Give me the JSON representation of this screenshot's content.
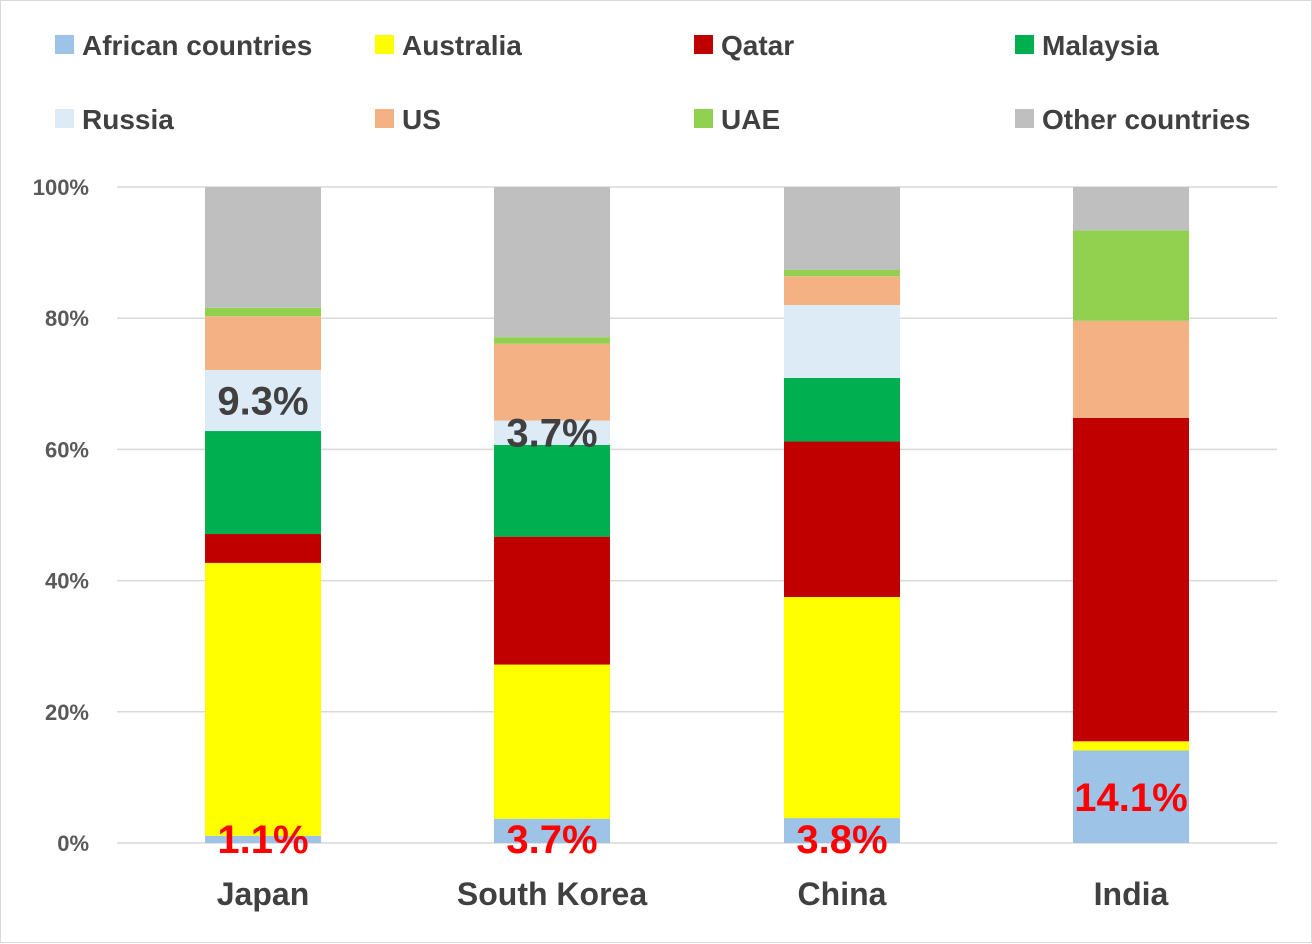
{
  "chart_data": {
    "type": "bar",
    "stacked": true,
    "categories": [
      "Japan",
      "South Korea",
      "China",
      "India"
    ],
    "series": [
      {
        "name": "African countries",
        "color": "#9DC3E6",
        "values": [
          1.1,
          3.7,
          3.8,
          14.1
        ]
      },
      {
        "name": "Australia",
        "color": "#FFFF00",
        "values": [
          41.6,
          23.5,
          33.7,
          1.4
        ]
      },
      {
        "name": "Qatar",
        "color": "#C00000",
        "values": [
          4.4,
          19.5,
          23.7,
          49.3
        ]
      },
      {
        "name": "Malaysia",
        "color": "#00B050",
        "values": [
          15.7,
          14.0,
          9.7,
          0.0
        ]
      },
      {
        "name": "Russia",
        "color": "#DDEBF7",
        "values": [
          9.3,
          3.7,
          11.1,
          0.0
        ]
      },
      {
        "name": "US",
        "color": "#F4B183",
        "values": [
          8.2,
          11.7,
          4.4,
          14.8
        ]
      },
      {
        "name": "UAE",
        "color": "#92D050",
        "values": [
          1.3,
          1.0,
          1.0,
          13.8
        ]
      },
      {
        "name": "Other countries",
        "color": "#BFBFBF",
        "values": [
          18.4,
          22.9,
          12.6,
          6.6
        ]
      }
    ],
    "ylim": [
      0,
      100
    ],
    "yticks": [
      "0%",
      "20%",
      "40%",
      "60%",
      "80%",
      "100%"
    ],
    "legend_position": "top",
    "grid": true,
    "annotations": [
      {
        "text": "1.1%",
        "category": "Japan",
        "series": "African countries",
        "color": "#FF0000"
      },
      {
        "text": "3.7%",
        "category": "South Korea",
        "series": "African countries",
        "color": "#FF0000"
      },
      {
        "text": "3.8%",
        "category": "China",
        "series": "African countries",
        "color": "#FF0000"
      },
      {
        "text": "14.1%",
        "category": "India",
        "series": "African countries",
        "color": "#FF0000"
      },
      {
        "text": "9.3%",
        "category": "Japan",
        "series": "Russia",
        "color": "#404040"
      },
      {
        "text": "3.7%",
        "category": "South Korea",
        "series": "Russia",
        "color": "#404040"
      }
    ]
  }
}
